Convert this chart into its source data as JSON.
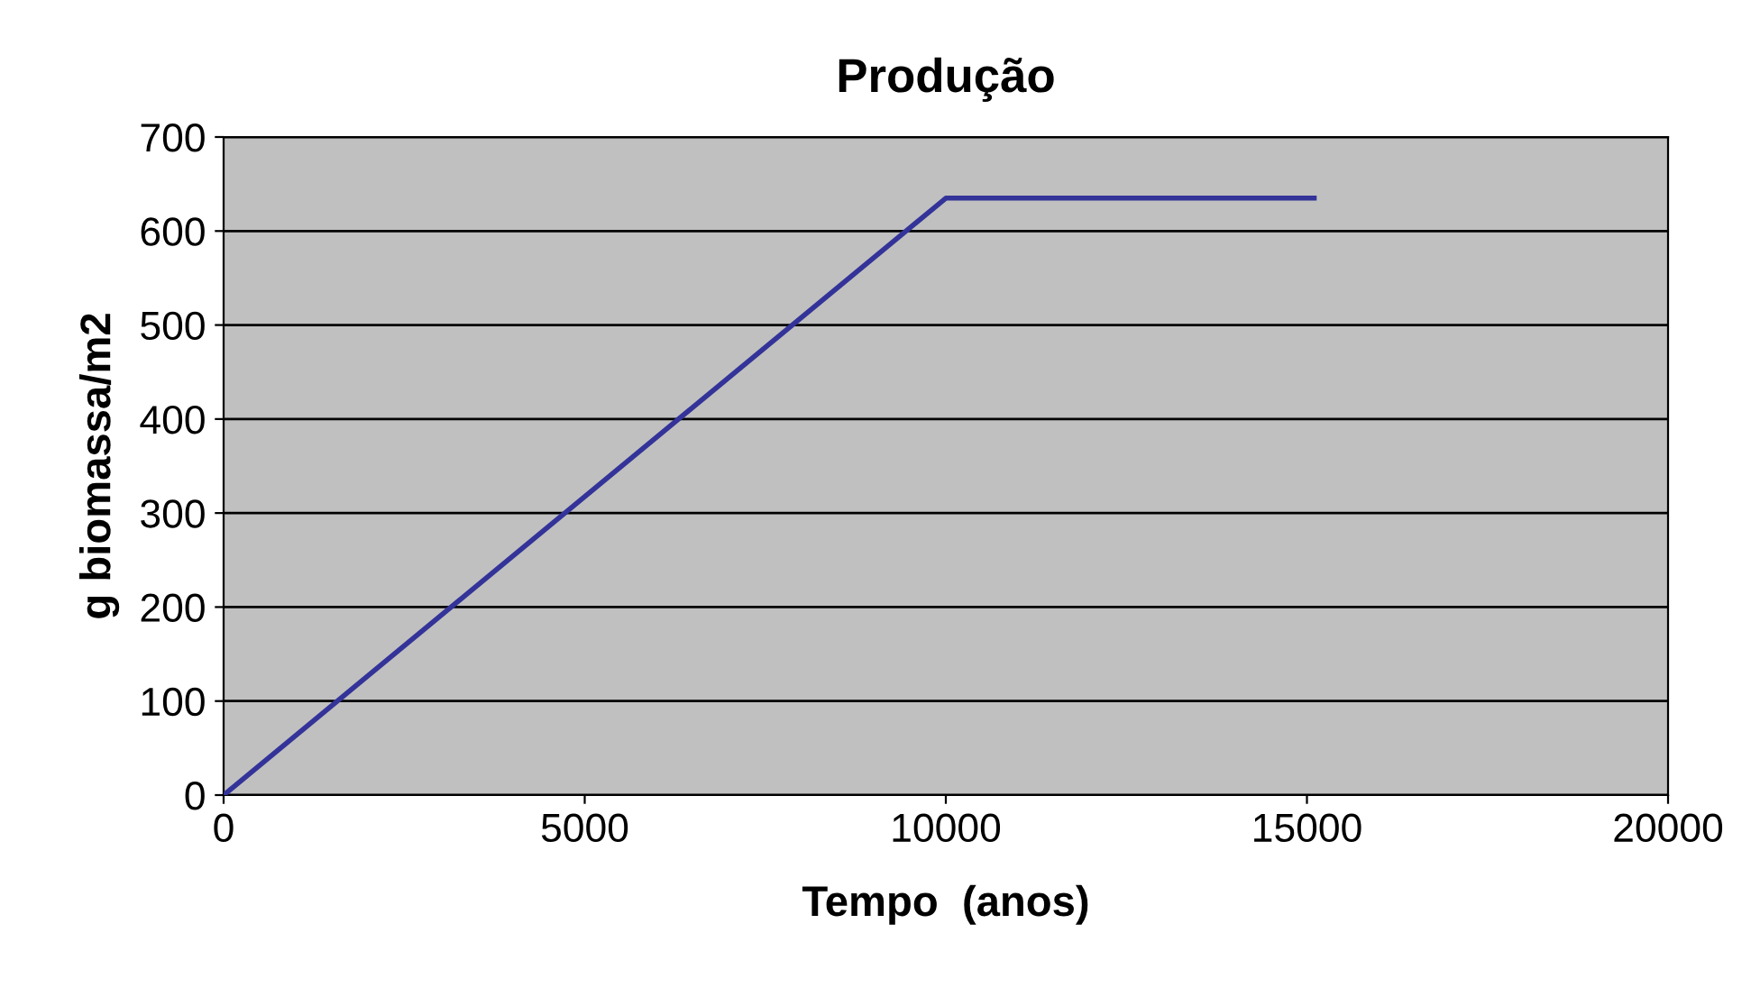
{
  "chart_data": {
    "type": "line",
    "title": "Produção",
    "xlabel": "Tempo  (anos)",
    "ylabel": "g biomassa/m2",
    "x": [
      0,
      10000,
      15100
    ],
    "series": [
      {
        "color": "#333399",
        "values": [
          0,
          635,
          635
        ]
      }
    ],
    "xlim": [
      0,
      20000
    ],
    "xticks": [
      0,
      5000,
      10000,
      15000,
      20000
    ],
    "ylim": [
      0,
      700
    ],
    "yticks": [
      0,
      100,
      200,
      300,
      400,
      500,
      600,
      700
    ],
    "grid": "y",
    "legend": false,
    "marker": "none",
    "line_style": "solid"
  }
}
